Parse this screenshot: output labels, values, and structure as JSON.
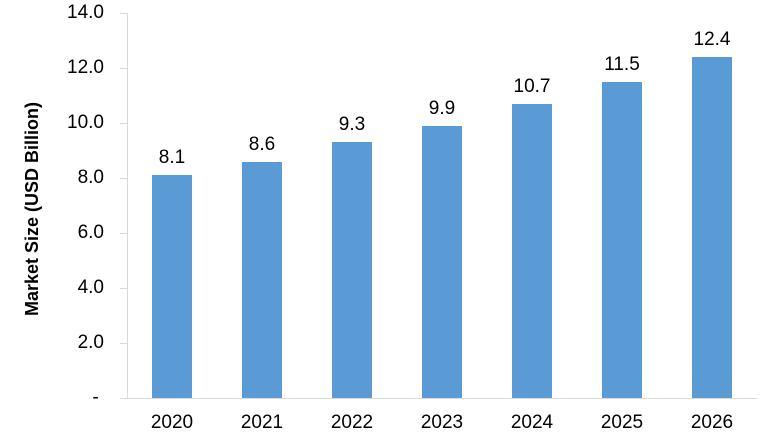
{
  "chart_data": {
    "type": "bar",
    "categories": [
      "2020",
      "2021",
      "2022",
      "2023",
      "2024",
      "2025",
      "2026"
    ],
    "values": [
      8.1,
      8.6,
      9.3,
      9.9,
      10.7,
      11.5,
      12.4
    ],
    "data_labels": [
      "8.1",
      "8.6",
      "9.3",
      "9.9",
      "10.7",
      "11.5",
      "12.4"
    ],
    "title": "",
    "xlabel": "",
    "ylabel": "Market Size (USD Billion)",
    "ylim": [
      0,
      14
    ],
    "y_ticks": [
      "14.0",
      "12.0",
      "10.0",
      "8.0",
      "6.0",
      "4.0",
      "2.0",
      "- "
    ],
    "y_tick_values": [
      14,
      12,
      10,
      8,
      6,
      4,
      2,
      0
    ],
    "legend": "none",
    "grid": "off",
    "colors": {
      "bar_fill": "#5b9bd5",
      "axis_line": "#d9d9d9",
      "text": "#000000"
    }
  }
}
